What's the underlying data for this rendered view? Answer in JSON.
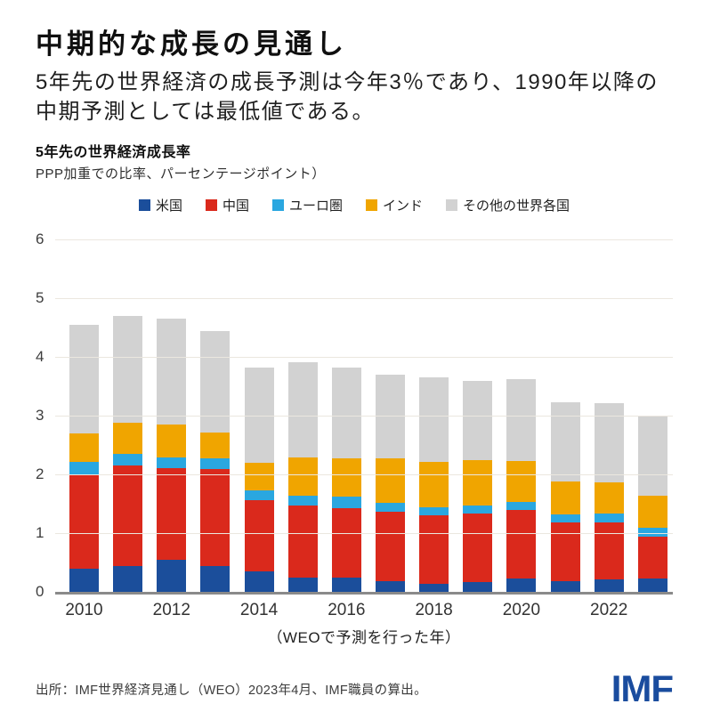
{
  "header": {
    "title": "中期的な成長の見通し",
    "subtitle_line1": "5年先の世界経済の成長予測は今年3％であり、1990年以降の",
    "subtitle_line2": "中期予測としては最低値である。"
  },
  "chart": {
    "title": "5年先の世界経済成長率",
    "note": "PPP加重での比率、パーセンテージポイント）"
  },
  "chart_data": {
    "type": "bar",
    "subtype": "stacked",
    "title": "5年先の世界経済成長率",
    "categories": [
      "2010",
      "2011",
      "2012",
      "2013",
      "2014",
      "2015",
      "2016",
      "2017",
      "2018",
      "2019",
      "2020",
      "2021",
      "2022",
      "2023"
    ],
    "series": [
      {
        "name": "米国",
        "color": "#1b4e9b",
        "values": [
          0.4,
          0.44,
          0.55,
          0.45,
          0.35,
          0.25,
          0.24,
          0.19,
          0.14,
          0.17,
          0.23,
          0.19,
          0.21,
          0.23
        ]
      },
      {
        "name": "中国",
        "color": "#da291c",
        "values": [
          1.6,
          1.71,
          1.56,
          1.64,
          1.22,
          1.22,
          1.19,
          1.18,
          1.16,
          1.17,
          1.17,
          0.99,
          0.98,
          0.72
        ]
      },
      {
        "name": "ユーロ圏",
        "color": "#2aa7e0",
        "values": [
          0.22,
          0.2,
          0.18,
          0.19,
          0.16,
          0.17,
          0.19,
          0.15,
          0.14,
          0.13,
          0.14,
          0.14,
          0.15,
          0.14
        ]
      },
      {
        "name": "インド",
        "color": "#f0a500",
        "values": [
          0.48,
          0.54,
          0.56,
          0.43,
          0.47,
          0.65,
          0.66,
          0.75,
          0.78,
          0.78,
          0.69,
          0.57,
          0.53,
          0.55
        ]
      },
      {
        "name": "その他の世界各国",
        "color": "#d2d2d2",
        "values": [
          1.85,
          1.81,
          1.8,
          1.74,
          1.63,
          1.63,
          1.54,
          1.43,
          1.43,
          1.35,
          1.39,
          1.34,
          1.34,
          1.36
        ]
      }
    ],
    "totals": [
      4.55,
      4.7,
      4.65,
      4.45,
      3.83,
      3.92,
      3.82,
      3.7,
      3.65,
      3.6,
      3.62,
      3.23,
      3.21,
      3.0
    ],
    "ylim": [
      0,
      6
    ],
    "yticks": [
      0,
      1,
      2,
      3,
      4,
      5,
      6
    ],
    "xticks": [
      "2010",
      "2012",
      "2014",
      "2016",
      "2018",
      "2020",
      "2022"
    ],
    "xlabel": "（WEOで予測を行った年）",
    "grid": true,
    "legend_position": "top"
  },
  "footer": {
    "source": "出所：IMF世界経済見通し（WEO）2023年4月、IMF職員の算出。",
    "logo": "IMF"
  },
  "colors": {
    "logo_blue": "#1a4c9e"
  }
}
